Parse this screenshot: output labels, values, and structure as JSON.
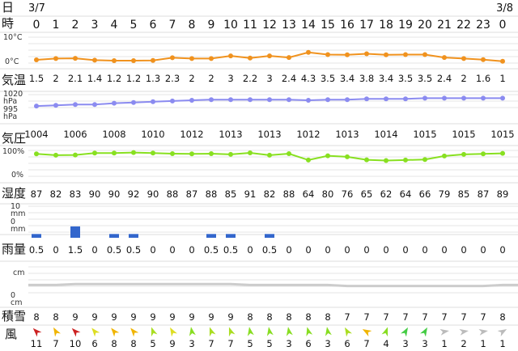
{
  "header": {
    "row_day_label": "日",
    "row_hour_label": "時",
    "date_start": "3/7",
    "date_end": "3/8"
  },
  "hours": [
    "0",
    "1",
    "2",
    "3",
    "4",
    "5",
    "6",
    "7",
    "8",
    "9",
    "10",
    "11",
    "12",
    "13",
    "14",
    "15",
    "16",
    "17",
    "18",
    "19",
    "20",
    "21",
    "22",
    "23",
    "0"
  ],
  "rows": {
    "temperature": {
      "label": "気温",
      "axis_top": "10°C",
      "axis_bottom": "0°C",
      "color": "#f0921e",
      "ylim": [
        0,
        10
      ]
    },
    "pressure": {
      "label": "気圧",
      "axis_top": "1020\nhPa",
      "axis_bottom": "995\nhPa",
      "color": "#8b8bf0",
      "ylim": [
        995,
        1020
      ]
    },
    "humidity": {
      "label": "湿度",
      "axis_top": "100%",
      "axis_bottom": "0%",
      "color": "#88e020",
      "ylim": [
        0,
        100
      ]
    },
    "precipitation": {
      "label": "雨量",
      "axis_top": "10\nmm",
      "axis_bottom": "0\nmm",
      "color": "#3366cc",
      "ylim": [
        0,
        10
      ]
    },
    "snow": {
      "label": "積雪",
      "axis_top": "cm",
      "axis_bottom": "0\ncm",
      "color": "#cccccc"
    },
    "wind": {
      "label": "風"
    }
  },
  "chart_data": [
    {
      "type": "line",
      "name": "気温",
      "x": [
        "0",
        "1",
        "2",
        "3",
        "4",
        "5",
        "6",
        "7",
        "8",
        "9",
        "10",
        "11",
        "12",
        "13",
        "14",
        "15",
        "16",
        "17",
        "18",
        "19",
        "20",
        "21",
        "22",
        "23",
        "0"
      ],
      "values": [
        1.5,
        2,
        2.1,
        1.4,
        1.2,
        1.2,
        1.3,
        2.3,
        2,
        2,
        3,
        2.2,
        3,
        2.4,
        4.3,
        3.5,
        3.4,
        3.8,
        3.4,
        3.5,
        3.5,
        2.4,
        2,
        1.6,
        1
      ],
      "labels": [
        "1.5",
        "2",
        "2.1",
        "1.4",
        "1.2",
        "1.2",
        "1.3",
        "2.3",
        "2",
        "2",
        "3",
        "2.2",
        "3",
        "2.4",
        "4.3",
        "3.5",
        "3.4",
        "3.8",
        "3.4",
        "3.5",
        "3.5",
        "2.4",
        "2",
        "1.6",
        "1"
      ],
      "ylim": [
        0,
        10
      ],
      "unit": "°C"
    },
    {
      "type": "line",
      "name": "気圧",
      "x": [
        "0",
        "1",
        "2",
        "3",
        "4",
        "5",
        "6",
        "7",
        "8",
        "9",
        "10",
        "11",
        "12",
        "13",
        "14",
        "15",
        "16",
        "17",
        "18",
        "19",
        "20",
        "21",
        "22",
        "23",
        "0"
      ],
      "values": [
        1004,
        1005,
        1006,
        1006,
        1008,
        1009,
        1010,
        1011,
        1012,
        1013,
        1013,
        1013,
        1013,
        1013,
        1012,
        1013,
        1013,
        1014,
        1014,
        1014,
        1015,
        1015,
        1015,
        1015,
        1015
      ],
      "labels": [
        "1004",
        "",
        "1006",
        "",
        "1008",
        "",
        "1010",
        "",
        "1012",
        "",
        "1013",
        "",
        "1013",
        "",
        "1012",
        "",
        "1013",
        "",
        "1014",
        "",
        "1015",
        "",
        "1015",
        "",
        "1015"
      ],
      "ylim": [
        995,
        1020
      ],
      "unit": "hPa"
    },
    {
      "type": "line",
      "name": "湿度",
      "x": [
        "0",
        "1",
        "2",
        "3",
        "4",
        "5",
        "6",
        "7",
        "8",
        "9",
        "10",
        "11",
        "12",
        "13",
        "14",
        "15",
        "16",
        "17",
        "18",
        "19",
        "20",
        "21",
        "22",
        "23",
        "0"
      ],
      "values": [
        87,
        82,
        83,
        90,
        90,
        92,
        90,
        88,
        87,
        88,
        85,
        91,
        82,
        88,
        64,
        80,
        76,
        65,
        62,
        64,
        66,
        79,
        85,
        87,
        89
      ],
      "labels": [
        "87",
        "82",
        "83",
        "90",
        "90",
        "92",
        "90",
        "88",
        "87",
        "88",
        "85",
        "91",
        "82",
        "88",
        "64",
        "80",
        "76",
        "65",
        "62",
        "64",
        "66",
        "79",
        "85",
        "87",
        "89"
      ],
      "ylim": [
        0,
        100
      ],
      "unit": "%"
    },
    {
      "type": "bar",
      "name": "雨量",
      "x": [
        "0",
        "1",
        "2",
        "3",
        "4",
        "5",
        "6",
        "7",
        "8",
        "9",
        "10",
        "11",
        "12",
        "13",
        "14",
        "15",
        "16",
        "17",
        "18",
        "19",
        "20",
        "21",
        "22",
        "23",
        "0"
      ],
      "values": [
        0.5,
        0,
        1.5,
        0,
        0.5,
        0.5,
        0,
        0,
        0,
        0.5,
        0.5,
        0,
        0.5,
        0,
        0,
        0,
        0,
        0,
        0,
        0,
        0,
        0,
        0,
        0,
        0
      ],
      "labels": [
        "0.5",
        "0",
        "1.5",
        "0",
        "0.5",
        "0.5",
        "0",
        "0",
        "0",
        "0.5",
        "0.5",
        "0",
        "0.5",
        "0",
        "0",
        "0",
        "0",
        "0",
        "0",
        "0",
        "0",
        "0",
        "0",
        "0",
        "0"
      ],
      "ylim": [
        0,
        10
      ],
      "unit": "mm"
    },
    {
      "type": "area",
      "name": "積雪",
      "x": [
        "0",
        "1",
        "2",
        "3",
        "4",
        "5",
        "6",
        "7",
        "8",
        "9",
        "10",
        "11",
        "12",
        "13",
        "14",
        "15",
        "16",
        "17",
        "18",
        "19",
        "20",
        "21",
        "22",
        "23",
        "0"
      ],
      "values": [
        8,
        8,
        9,
        9,
        9,
        9,
        9,
        9,
        9,
        9,
        9,
        8,
        8,
        8,
        8,
        8,
        7,
        7,
        7,
        7,
        7,
        7,
        7,
        7,
        8
      ],
      "labels": [
        "8",
        "8",
        "9",
        "9",
        "9",
        "9",
        "9",
        "9",
        "9",
        "9",
        "9",
        "8",
        "8",
        "8",
        "8",
        "8",
        "7",
        "7",
        "7",
        "7",
        "7",
        "7",
        "7",
        "7",
        "8"
      ],
      "unit": "cm"
    },
    {
      "type": "table",
      "name": "風",
      "x": [
        "0",
        "1",
        "2",
        "3",
        "4",
        "5",
        "6",
        "7",
        "8",
        "9",
        "10",
        "11",
        "12",
        "13",
        "14",
        "15",
        "16",
        "17",
        "18",
        "19",
        "20",
        "21",
        "22",
        "23",
        "0"
      ],
      "speeds": [
        11,
        7,
        10,
        6,
        8,
        8,
        5,
        9,
        3,
        7,
        7,
        5,
        5,
        3,
        6,
        3,
        6,
        7,
        4,
        3,
        3,
        1,
        2,
        1,
        1
      ],
      "arrow_colors": [
        "#cc2222",
        "#f0b400",
        "#cc2222",
        "#dddd22",
        "#f0b400",
        "#f0b400",
        "#aadd22",
        "#dddd22",
        "#88dd22",
        "#aadd22",
        "#aadd22",
        "#88dd22",
        "#88dd22",
        "#88dd22",
        "#88dd22",
        "#88dd22",
        "#aadd22",
        "#f0b400",
        "#88dd22",
        "#44cc44",
        "#44cc44",
        "#bbbbbb",
        "#bbbbbb",
        "#bbbbbb",
        "#bbbbbb"
      ],
      "arrow_directions_deg": [
        315,
        330,
        315,
        320,
        320,
        320,
        340,
        330,
        350,
        340,
        340,
        350,
        350,
        350,
        345,
        350,
        330,
        300,
        20,
        30,
        30,
        80,
        80,
        80,
        60
      ]
    }
  ]
}
